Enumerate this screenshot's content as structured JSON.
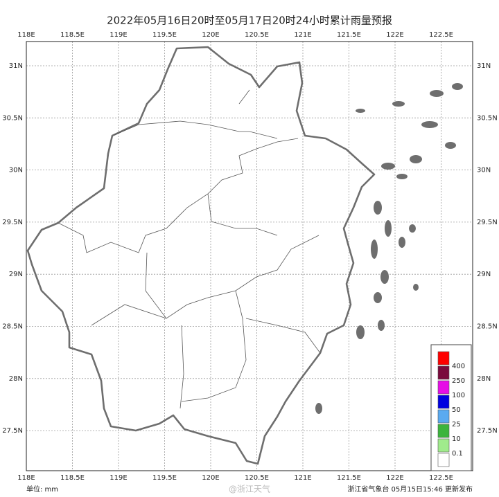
{
  "title": "2022年05月16日20时至05月17日20时24小时累计雨量预报",
  "lon_ticks": [
    {
      "value": 118,
      "label": "118E"
    },
    {
      "value": 118.5,
      "label": "118.5E"
    },
    {
      "value": 119,
      "label": "119E"
    },
    {
      "value": 119.5,
      "label": "119.5E"
    },
    {
      "value": 120,
      "label": "120E"
    },
    {
      "value": 120.5,
      "label": "120.5E"
    },
    {
      "value": 121,
      "label": "121E"
    },
    {
      "value": 121.5,
      "label": "121.5E"
    },
    {
      "value": 122,
      "label": "122E"
    },
    {
      "value": 122.5,
      "label": "122.5E"
    }
  ],
  "lat_ticks": [
    {
      "value": 31,
      "label": "31N"
    },
    {
      "value": 30.5,
      "label": "30.5N"
    },
    {
      "value": 30,
      "label": "30N"
    },
    {
      "value": 29.5,
      "label": "29.5N"
    },
    {
      "value": 29,
      "label": "29N"
    },
    {
      "value": 28.5,
      "label": "28.5N"
    },
    {
      "value": 28,
      "label": "28N"
    },
    {
      "value": 27.5,
      "label": "27.5N"
    }
  ],
  "legend": {
    "colors": [
      "#ff0000",
      "#7a0a3c",
      "#e60ee6",
      "#0000e0",
      "#5aaaf0",
      "#3cb43c",
      "#a0eb8c",
      "#ffffff"
    ],
    "labels": [
      "400",
      "250",
      "100",
      "50",
      "25",
      "10",
      "0.1"
    ]
  },
  "footer": {
    "unit": "单位: mm",
    "watermark": "@浙江天气",
    "issuer": "浙江省气象台 05月15日15:46 更新发布"
  }
}
